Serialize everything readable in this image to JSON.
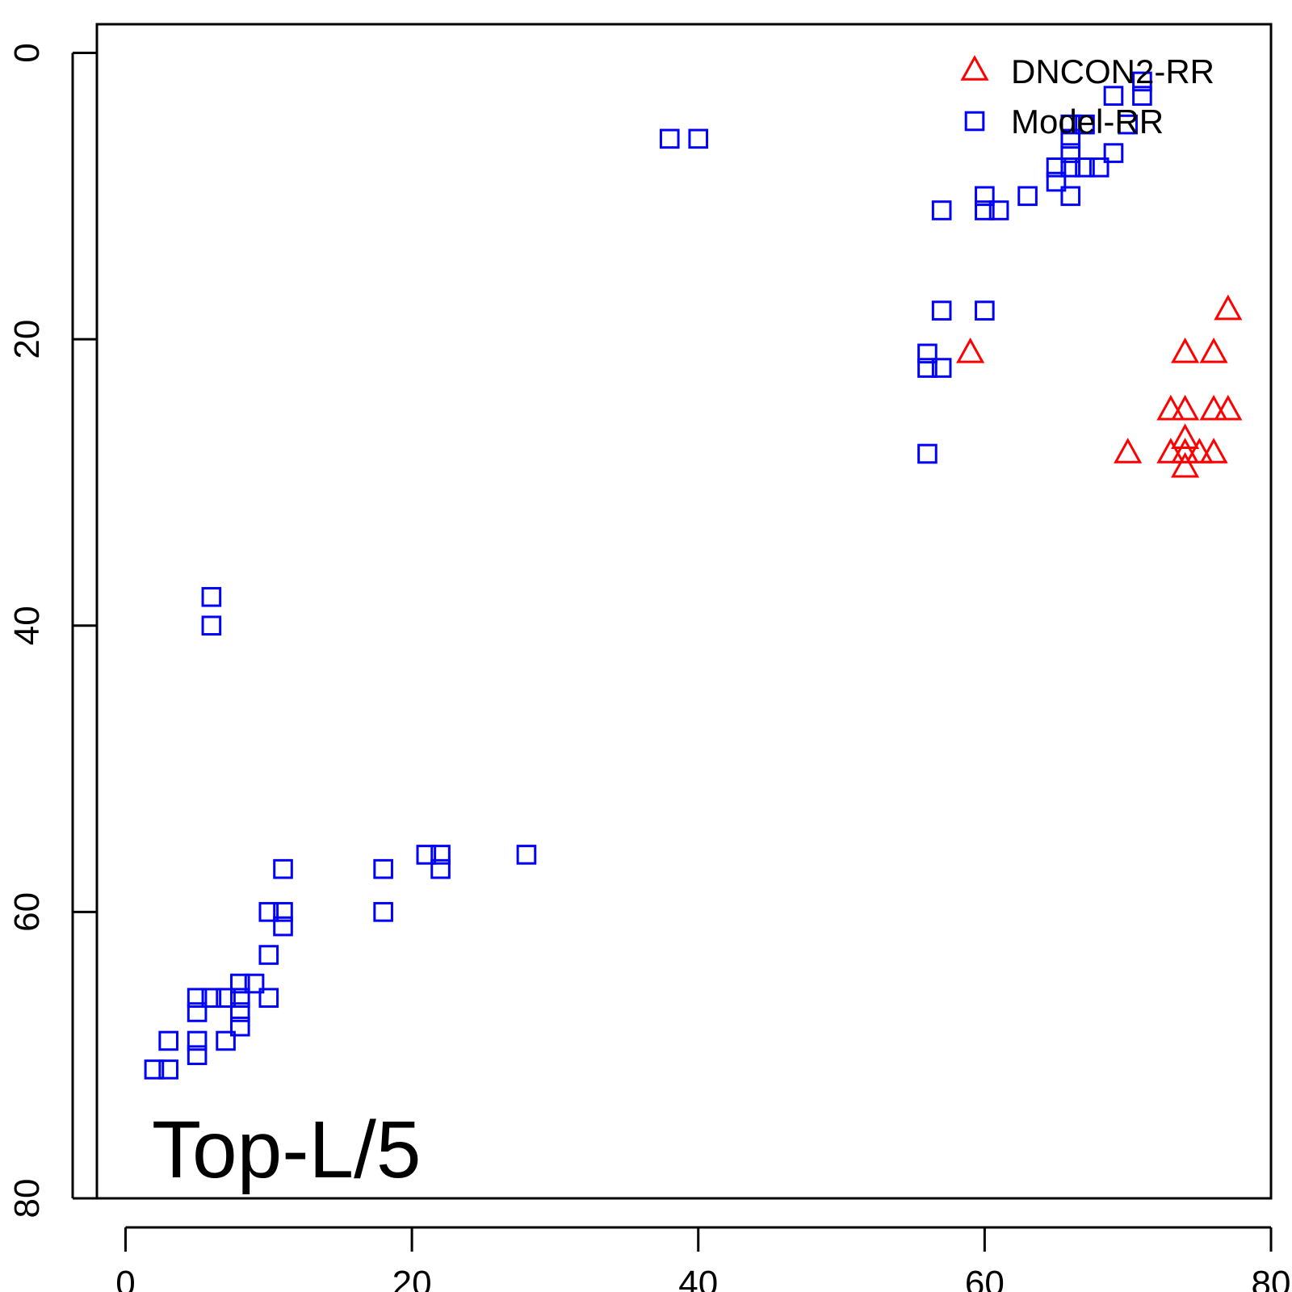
{
  "chart_data": {
    "type": "scatter",
    "xlim": [
      -2,
      80
    ],
    "ylim": [
      80,
      -2
    ],
    "y_axis_reversed": true,
    "x_ticks": [
      0,
      20,
      40,
      60,
      80
    ],
    "y_ticks": [
      0,
      20,
      40,
      60,
      80
    ],
    "x_tick_labels": [
      "0",
      "20",
      "40",
      "60",
      "80"
    ],
    "y_tick_labels": [
      "0",
      "20",
      "40",
      "60",
      "80"
    ],
    "grid": false,
    "legend_position": "top-right",
    "annotation": "Top-L/5",
    "series": [
      {
        "name": "DNCON2-RR",
        "marker": "triangle",
        "color": "#ff0000",
        "points": [
          [
            77,
            18
          ],
          [
            59,
            21
          ],
          [
            74,
            21
          ],
          [
            76,
            21
          ],
          [
            73,
            25
          ],
          [
            74,
            25
          ],
          [
            76,
            25
          ],
          [
            77,
            25
          ],
          [
            74,
            27
          ],
          [
            70,
            28
          ],
          [
            73,
            28
          ],
          [
            74,
            28
          ],
          [
            75,
            28
          ],
          [
            76,
            28
          ],
          [
            74,
            29
          ]
        ]
      },
      {
        "name": "Model-RR",
        "marker": "square",
        "color": "#0000ff",
        "points": [
          [
            71,
            2
          ],
          [
            69,
            3
          ],
          [
            71,
            3
          ],
          [
            66,
            5
          ],
          [
            67,
            5
          ],
          [
            70,
            5
          ],
          [
            66,
            6
          ],
          [
            38,
            6
          ],
          [
            40,
            6
          ],
          [
            66,
            7
          ],
          [
            69,
            7
          ],
          [
            65,
            8
          ],
          [
            66,
            8
          ],
          [
            67,
            8
          ],
          [
            68,
            8
          ],
          [
            65,
            9
          ],
          [
            60,
            10
          ],
          [
            63,
            10
          ],
          [
            66,
            10
          ],
          [
            57,
            11
          ],
          [
            60,
            11
          ],
          [
            61,
            11
          ],
          [
            57,
            18
          ],
          [
            60,
            18
          ],
          [
            56,
            21
          ],
          [
            56,
            22
          ],
          [
            57,
            22
          ],
          [
            56,
            28
          ],
          [
            6,
            38
          ],
          [
            6,
            40
          ],
          [
            21,
            56
          ],
          [
            22,
            56
          ],
          [
            28,
            56
          ],
          [
            11,
            57
          ],
          [
            18,
            57
          ],
          [
            22,
            57
          ],
          [
            10,
            60
          ],
          [
            11,
            60
          ],
          [
            18,
            60
          ],
          [
            11,
            61
          ],
          [
            10,
            63
          ],
          [
            8,
            65
          ],
          [
            9,
            65
          ],
          [
            5,
            66
          ],
          [
            6,
            66
          ],
          [
            7,
            66
          ],
          [
            8,
            66
          ],
          [
            10,
            66
          ],
          [
            5,
            67
          ],
          [
            8,
            67
          ],
          [
            8,
            68
          ],
          [
            3,
            69
          ],
          [
            5,
            69
          ],
          [
            7,
            69
          ],
          [
            5,
            70
          ],
          [
            2,
            71
          ],
          [
            3,
            71
          ]
        ]
      }
    ]
  }
}
